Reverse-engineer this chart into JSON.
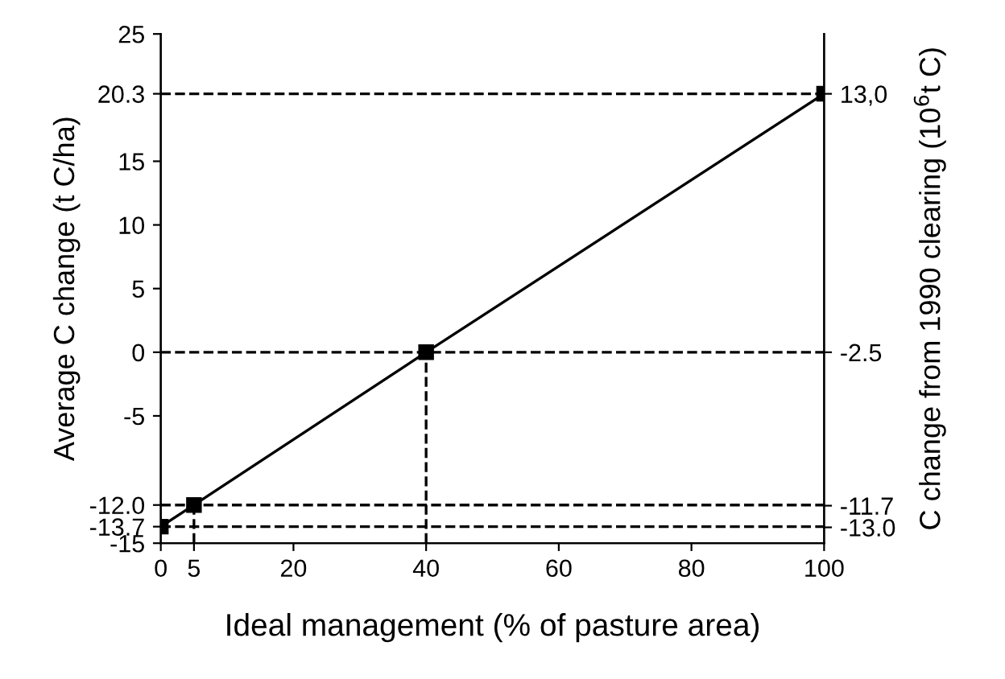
{
  "chart_data": {
    "type": "line",
    "xlabel": "Ideal management (% of pasture area)",
    "ylabel": "Average C change (t C/ha)",
    "y2label": "C change from 1990 clearing (10$^{6}$t C)",
    "x": [
      0,
      5,
      40,
      100
    ],
    "series": [
      {
        "color": "#000000",
        "values": [
          -13.7,
          -12.0,
          0,
          20.3
        ],
        "errors": [
          null,
          [
            -15,
            -12.0
          ],
          [
            -15,
            0
          ],
          null
        ]
      }
    ],
    "marker": "square",
    "line_style": "solid",
    "grid": false,
    "legend": false,
    "xlim": [
      0,
      100
    ],
    "xticks": [
      0,
      5,
      20,
      40,
      60,
      80,
      100
    ],
    "ylim": [
      -15,
      25
    ],
    "yticks": [
      -15,
      {
        "value": -13.7,
        "label": "-13.7"
      },
      {
        "value": -12.0,
        "label": "-12.0"
      },
      -5,
      0,
      5,
      10,
      15,
      {
        "value": 20.3,
        "label": "20.3"
      },
      25
    ],
    "y2lim": [
      -13.95,
      16.59
    ],
    "y2ticks": [
      {
        "value": -13.0,
        "label": "-13.0"
      },
      -11.7,
      -2.5,
      {
        "value": 13.0,
        "label": "13,0"
      }
    ],
    "ref_lines": [
      {
        "axis": "y",
        "value": 20.3,
        "line_style": "dashed",
        "color": "#000000"
      },
      {
        "axis": "y",
        "value": 0,
        "line_style": "dashed",
        "color": "#000000"
      },
      {
        "axis": "y",
        "value": -12.0,
        "line_style": "dashed",
        "color": "#000000"
      },
      {
        "axis": "y",
        "value": -13.7,
        "line_style": "dashed",
        "color": "#000000"
      }
    ]
  }
}
